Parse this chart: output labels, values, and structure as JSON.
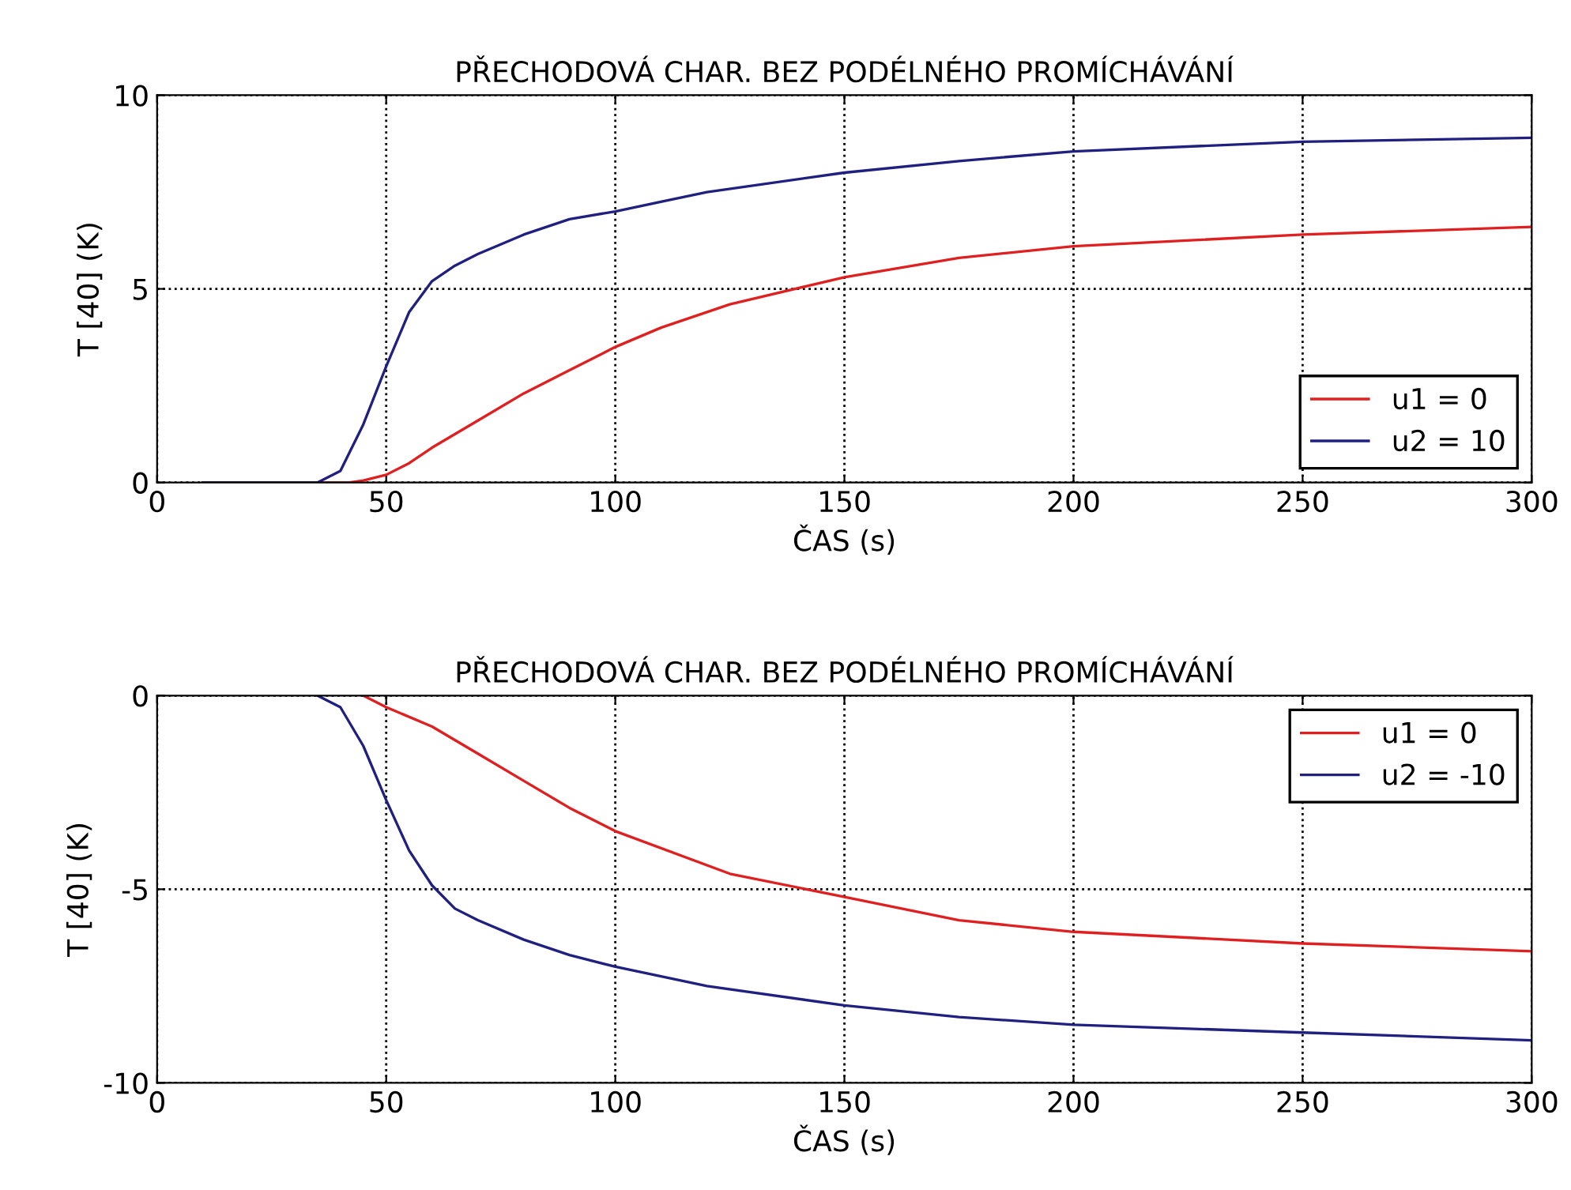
{
  "chart_data": [
    {
      "type": "line",
      "title": "PŘECHODOVÁ CHAR. BEZ PODÉLNÉHO PROMÍCHÁVÁNÍ",
      "xlabel": "ČAS (s)",
      "ylabel": "T [40] (K)",
      "xlim": [
        0,
        300
      ],
      "ylim": [
        0,
        10
      ],
      "xticks": [
        0,
        50,
        100,
        150,
        200,
        250,
        300
      ],
      "yticks": [
        0,
        5,
        10
      ],
      "grid": true,
      "legend": "bottom right",
      "line_style": "solid",
      "series": [
        {
          "name": "u1 = 0",
          "color": "#e02020",
          "x": [
            10,
            42,
            45,
            50,
            55,
            60,
            70,
            80,
            90,
            100,
            110,
            125,
            150,
            175,
            200,
            250,
            300
          ],
          "values": [
            0,
            0,
            0.05,
            0.2,
            0.5,
            0.9,
            1.6,
            2.3,
            2.9,
            3.5,
            4.0,
            4.6,
            5.3,
            5.8,
            6.1,
            6.4,
            6.6
          ]
        },
        {
          "name": "u2 = 10",
          "color": "#202080",
          "x": [
            10,
            35,
            40,
            45,
            50,
            55,
            60,
            65,
            70,
            80,
            90,
            100,
            120,
            150,
            175,
            200,
            250,
            300
          ],
          "values": [
            0,
            0,
            0.3,
            1.5,
            3.0,
            4.4,
            5.2,
            5.6,
            5.9,
            6.4,
            6.8,
            7.0,
            7.5,
            8.0,
            8.3,
            8.55,
            8.8,
            8.9
          ]
        }
      ]
    },
    {
      "type": "line",
      "title": "PŘECHODOVÁ CHAR. BEZ PODÉLNÉHO PROMÍCHÁVÁNÍ",
      "xlabel": "ČAS (s)",
      "ylabel": "T [40] (K)",
      "xlim": [
        0,
        300
      ],
      "ylim": [
        -10,
        0
      ],
      "xticks": [
        0,
        50,
        100,
        150,
        200,
        250,
        300
      ],
      "yticks": [
        -10,
        -5,
        0
      ],
      "grid": true,
      "legend": "top right",
      "line_style": "solid",
      "series": [
        {
          "name": "u1 = 0",
          "color": "#e02020",
          "x": [
            45,
            50,
            60,
            70,
            80,
            90,
            100,
            125,
            150,
            175,
            200,
            250,
            300
          ],
          "values": [
            0,
            -0.3,
            -0.8,
            -1.5,
            -2.2,
            -2.9,
            -3.5,
            -4.6,
            -5.2,
            -5.8,
            -6.1,
            -6.4,
            -6.6
          ]
        },
        {
          "name": "u2 = -10",
          "color": "#202080",
          "x": [
            35,
            40,
            45,
            50,
            55,
            60,
            65,
            70,
            80,
            90,
            100,
            120,
            150,
            175,
            200,
            250,
            300
          ],
          "values": [
            0,
            -0.3,
            -1.3,
            -2.7,
            -4.0,
            -4.9,
            -5.5,
            -5.8,
            -6.3,
            -6.7,
            -7.0,
            -7.5,
            -8.0,
            -8.3,
            -8.5,
            -8.7,
            -8.9
          ]
        }
      ]
    }
  ]
}
